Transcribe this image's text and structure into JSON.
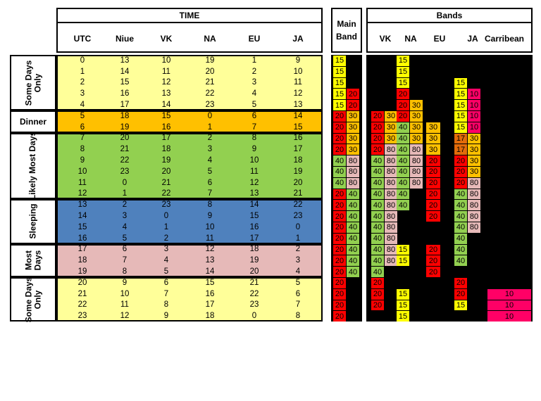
{
  "title_time": "TIME",
  "title_main_band": "Main Band",
  "title_bands": "Bands",
  "time_columns": [
    "UTC",
    "Niue",
    "VK",
    "NA",
    "EU",
    "JA"
  ],
  "band_columns": [
    "VK",
    "NA",
    "EU",
    "JA",
    "Carribean"
  ],
  "groups": [
    {
      "name": "Some Days Only",
      "rows": [
        0,
        4
      ],
      "color": "#FFFF99",
      "vertical": true
    },
    {
      "name": "Dinner",
      "rows": [
        5,
        6
      ],
      "color": "#FFC000",
      "vertical": false
    },
    {
      "name": "Likely Most Days",
      "rows": [
        7,
        12
      ],
      "color": "#92D050",
      "vertical": true
    },
    {
      "name": "Sleeping",
      "rows": [
        13,
        16
      ],
      "color": "#4F81BD",
      "vertical": true
    },
    {
      "name": "Most Days",
      "rows": [
        17,
        19
      ],
      "color": "#E6B9B8",
      "vertical": true
    },
    {
      "name": "Some Days Only",
      "rows": [
        20,
        23
      ],
      "color": "#FFFF99",
      "vertical": true
    }
  ],
  "time_rows": [
    [
      "0",
      "13",
      "10",
      "19",
      "1",
      "9"
    ],
    [
      "1",
      "14",
      "11",
      "20",
      "2",
      "10"
    ],
    [
      "2",
      "15",
      "12",
      "21",
      "3",
      "11"
    ],
    [
      "3",
      "16",
      "13",
      "22",
      "4",
      "12"
    ],
    [
      "4",
      "17",
      "14",
      "23",
      "5",
      "13"
    ],
    [
      "5",
      "18",
      "15",
      "0",
      "6",
      "14"
    ],
    [
      "6",
      "19",
      "16",
      "1",
      "7",
      "15"
    ],
    [
      "7",
      "20",
      "17",
      "2",
      "8",
      "16"
    ],
    [
      "8",
      "21",
      "18",
      "3",
      "9",
      "17"
    ],
    [
      "9",
      "22",
      "19",
      "4",
      "10",
      "18"
    ],
    [
      "10",
      "23",
      "20",
      "5",
      "11",
      "19"
    ],
    [
      "11",
      "0",
      "21",
      "6",
      "12",
      "20"
    ],
    [
      "12",
      "1",
      "22",
      "7",
      "13",
      "21"
    ],
    [
      "13",
      "2",
      "23",
      "8",
      "14",
      "22"
    ],
    [
      "14",
      "3",
      "0",
      "9",
      "15",
      "23"
    ],
    [
      "15",
      "4",
      "1",
      "10",
      "16",
      "0"
    ],
    [
      "16",
      "5",
      "2",
      "11",
      "17",
      "1"
    ],
    [
      "17",
      "6",
      "3",
      "12",
      "18",
      "2"
    ],
    [
      "18",
      "7",
      "4",
      "13",
      "19",
      "3"
    ],
    [
      "19",
      "8",
      "5",
      "14",
      "20",
      "4"
    ],
    [
      "20",
      "9",
      "6",
      "15",
      "21",
      "5"
    ],
    [
      "21",
      "10",
      "7",
      "16",
      "22",
      "6"
    ],
    [
      "22",
      "11",
      "8",
      "17",
      "23",
      "7"
    ],
    [
      "23",
      "12",
      "9",
      "18",
      "0",
      "8"
    ]
  ],
  "band_colors": {
    "10": "#FF0066",
    "15": "#FFFF00",
    "17": "#E26B0A",
    "20": "#FF0000",
    "30": "#FFC000",
    "40": "#92D050",
    "80": "#E6B9B8"
  },
  "main_band": [
    [
      "15",
      ""
    ],
    [
      "15",
      ""
    ],
    [
      "15",
      ""
    ],
    [
      "15",
      "20"
    ],
    [
      "15",
      "20"
    ],
    [
      "20",
      "30"
    ],
    [
      "20",
      "30"
    ],
    [
      "20",
      "30"
    ],
    [
      "20",
      "30"
    ],
    [
      "40",
      "80"
    ],
    [
      "40",
      "80"
    ],
    [
      "40",
      "80"
    ],
    [
      "20",
      "40"
    ],
    [
      "20",
      "40"
    ],
    [
      "20",
      "40"
    ],
    [
      "20",
      "40"
    ],
    [
      "20",
      "40"
    ],
    [
      "20",
      "40"
    ],
    [
      "20",
      "40"
    ],
    [
      "20",
      "40"
    ],
    [
      "20",
      ""
    ],
    [
      "20",
      ""
    ],
    [
      "20",
      ""
    ],
    [
      "20",
      ""
    ]
  ],
  "bands": [
    {
      "VK": [
        "",
        ""
      ],
      "NA": [
        "15",
        ""
      ],
      "EU": "",
      "JA": [
        "",
        ""
      ],
      "Carribean": ""
    },
    {
      "VK": [
        "",
        ""
      ],
      "NA": [
        "15",
        ""
      ],
      "EU": "",
      "JA": [
        "",
        ""
      ],
      "Carribean": ""
    },
    {
      "VK": [
        "",
        ""
      ],
      "NA": [
        "15",
        ""
      ],
      "EU": "",
      "JA": [
        "15",
        ""
      ],
      "Carribean": ""
    },
    {
      "VK": [
        "",
        ""
      ],
      "NA": [
        "20",
        ""
      ],
      "EU": "",
      "JA": [
        "15",
        "10"
      ],
      "Carribean": ""
    },
    {
      "VK": [
        "",
        ""
      ],
      "NA": [
        "20",
        "30"
      ],
      "EU": "",
      "JA": [
        "15",
        "10"
      ],
      "Carribean": ""
    },
    {
      "VK": [
        "20",
        "30"
      ],
      "NA": [
        "20",
        "30"
      ],
      "EU": "",
      "JA": [
        "15",
        "10"
      ],
      "Carribean": ""
    },
    {
      "VK": [
        "20",
        "30"
      ],
      "NA": [
        "40",
        "30"
      ],
      "EU": "30",
      "JA": [
        "15",
        "10"
      ],
      "Carribean": ""
    },
    {
      "VK": [
        "20",
        "30"
      ],
      "NA": [
        "40",
        "30"
      ],
      "EU": "30",
      "JA": [
        "17",
        "30"
      ],
      "Carribean": ""
    },
    {
      "VK": [
        "20",
        "80"
      ],
      "NA": [
        "40",
        "80"
      ],
      "EU": "30",
      "JA": [
        "17",
        "30"
      ],
      "Carribean": ""
    },
    {
      "VK": [
        "40",
        "80"
      ],
      "NA": [
        "40",
        "80"
      ],
      "EU": "20",
      "JA": [
        "20",
        "30"
      ],
      "Carribean": ""
    },
    {
      "VK": [
        "40",
        "80"
      ],
      "NA": [
        "40",
        "80"
      ],
      "EU": "20",
      "JA": [
        "20",
        "30"
      ],
      "Carribean": ""
    },
    {
      "VK": [
        "40",
        "80"
      ],
      "NA": [
        "40",
        "80"
      ],
      "EU": "20",
      "JA": [
        "20",
        "80"
      ],
      "Carribean": ""
    },
    {
      "VK": [
        "40",
        "80"
      ],
      "NA": [
        "40",
        ""
      ],
      "EU": "20",
      "JA": [
        "40",
        "80"
      ],
      "Carribean": ""
    },
    {
      "VK": [
        "40",
        "80"
      ],
      "NA": [
        "40",
        ""
      ],
      "EU": "20",
      "JA": [
        "40",
        "80"
      ],
      "Carribean": ""
    },
    {
      "VK": [
        "40",
        "80"
      ],
      "NA": [
        "",
        ""
      ],
      "EU": "20",
      "JA": [
        "40",
        "80"
      ],
      "Carribean": ""
    },
    {
      "VK": [
        "40",
        "80"
      ],
      "NA": [
        "",
        ""
      ],
      "EU": "",
      "JA": [
        "40",
        "80"
      ],
      "Carribean": ""
    },
    {
      "VK": [
        "40",
        "80"
      ],
      "NA": [
        "",
        ""
      ],
      "EU": "",
      "JA": [
        "40",
        ""
      ],
      "Carribean": ""
    },
    {
      "VK": [
        "40",
        "80"
      ],
      "NA": [
        "15",
        ""
      ],
      "EU": "20",
      "JA": [
        "40",
        ""
      ],
      "Carribean": ""
    },
    {
      "VK": [
        "40",
        "80"
      ],
      "NA": [
        "15",
        ""
      ],
      "EU": "20",
      "JA": [
        "40",
        ""
      ],
      "Carribean": ""
    },
    {
      "VK": [
        "40",
        ""
      ],
      "NA": [
        "",
        ""
      ],
      "EU": "20",
      "JA": [
        "",
        ""
      ],
      "Carribean": ""
    },
    {
      "VK": [
        "20",
        ""
      ],
      "NA": [
        "",
        ""
      ],
      "EU": "",
      "JA": [
        "20",
        ""
      ],
      "Carribean": ""
    },
    {
      "VK": [
        "20",
        ""
      ],
      "NA": [
        "15",
        ""
      ],
      "EU": "",
      "JA": [
        "20",
        ""
      ],
      "Carribean": "10"
    },
    {
      "VK": [
        "20",
        ""
      ],
      "NA": [
        "15",
        ""
      ],
      "EU": "",
      "JA": [
        "15",
        ""
      ],
      "Carribean": "10"
    },
    {
      "VK": [
        "",
        ""
      ],
      "NA": [
        "15",
        ""
      ],
      "EU": "",
      "JA": [
        "",
        ""
      ],
      "Carribean": "10"
    }
  ]
}
